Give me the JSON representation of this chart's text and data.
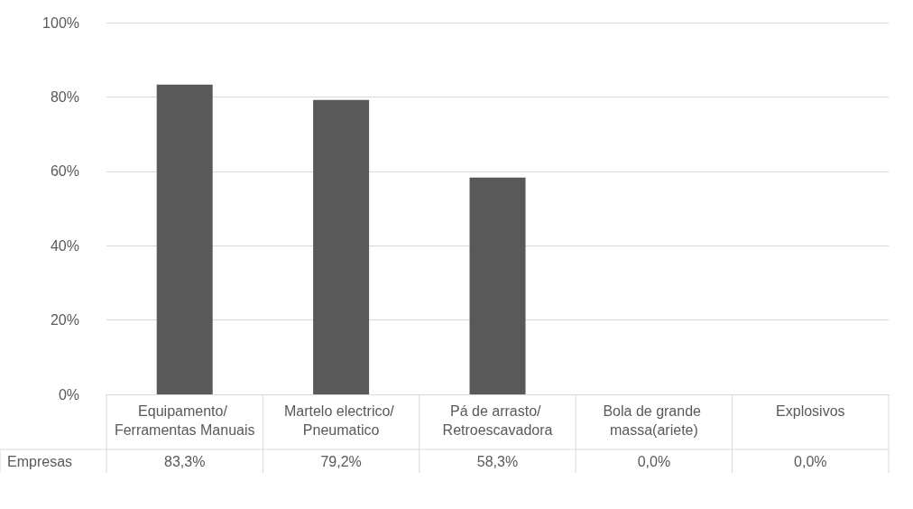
{
  "chart_data": {
    "type": "bar",
    "categories": [
      "Equipamento/ Ferramentas Manuais",
      "Martelo electrico/ Pneumatico",
      "Pá de arrasto/ Retroescavadora",
      "Bola de grande massa(ariete)",
      "Explosivos"
    ],
    "series": [
      {
        "name": "Empresas",
        "color": "#595959",
        "values": [
          83.3,
          79.2,
          58.3,
          0.0,
          0.0
        ],
        "value_labels": [
          "83,3%",
          "79,2%",
          "58,3%",
          "0,0%",
          "0,0%"
        ]
      }
    ],
    "ylim": [
      0,
      100
    ],
    "yticks": [
      {
        "value": 0,
        "label": "0%"
      },
      {
        "value": 20,
        "label": "20%"
      },
      {
        "value": 40,
        "label": "40%"
      },
      {
        "value": 60,
        "label": "60%"
      },
      {
        "value": 80,
        "label": "80%"
      },
      {
        "value": 100,
        "label": "100%"
      }
    ],
    "grid": "y",
    "legend": false
  }
}
